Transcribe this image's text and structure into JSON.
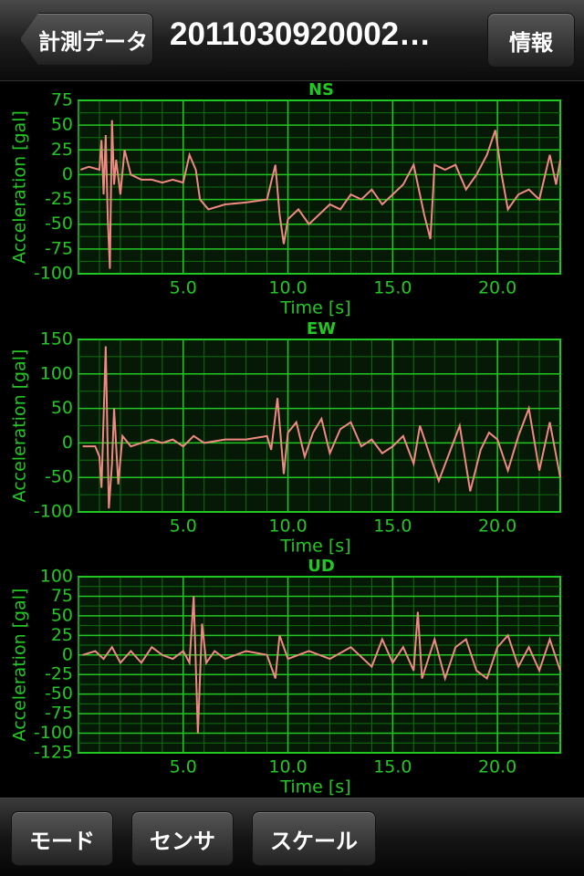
{
  "nav_bar": {
    "back": "計測データ",
    "title": "2011030920002…",
    "info": "情報"
  },
  "chart_data": [
    {
      "type": "line",
      "title": "NS",
      "x_label": "Time [s]",
      "y_label": "Acceleration [gal]",
      "color": "#f08a80",
      "grid": true,
      "x": [
        0.1,
        0.5,
        1.0,
        1.1,
        1.2,
        1.3,
        1.4,
        1.5,
        1.6,
        1.7,
        1.8,
        2.0,
        2.2,
        2.5,
        3.0,
        3.5,
        4.0,
        4.5,
        5.0,
        5.3,
        5.6,
        5.8,
        6.2,
        7.0,
        8.0,
        9.0,
        9.4,
        9.6,
        9.8,
        10.0,
        10.5,
        11.0,
        11.5,
        12.0,
        12.5,
        13.0,
        13.5,
        14.0,
        14.5,
        15.0,
        15.5,
        16.0,
        16.5,
        16.8,
        17.0,
        17.5,
        18.0,
        18.5,
        19.0,
        19.5,
        19.9,
        20.2,
        20.5,
        21.0,
        21.5,
        22.0,
        22.5,
        22.8,
        23.0
      ],
      "values": [
        5,
        8,
        5,
        35,
        -20,
        40,
        -45,
        -95,
        55,
        -10,
        15,
        -20,
        25,
        0,
        -5,
        -5,
        -8,
        -5,
        -8,
        20,
        5,
        -25,
        -35,
        -30,
        -28,
        -25,
        10,
        -40,
        -70,
        -45,
        -35,
        -50,
        -40,
        -30,
        -35,
        -20,
        -25,
        -15,
        -30,
        -20,
        -10,
        10,
        -40,
        -65,
        10,
        5,
        10,
        -15,
        0,
        20,
        45,
        0,
        -35,
        -20,
        -15,
        -25,
        20,
        -10,
        15
      ],
      "xlim": [
        0,
        23
      ],
      "xticks": [
        {
          "value": 5,
          "label": "5.0"
        },
        {
          "value": 10,
          "label": "10.0"
        },
        {
          "value": 15,
          "label": "15.0"
        },
        {
          "value": 20,
          "label": "20.0"
        }
      ],
      "ylim": [
        -100,
        75
      ],
      "yticks": [
        -100,
        -75,
        -50,
        -25,
        0,
        25,
        50,
        75
      ]
    },
    {
      "type": "line",
      "title": "EW",
      "x_label": "Time [s]",
      "y_label": "Acceleration [gal]",
      "color": "#f08a80",
      "grid": true,
      "x": [
        0.2,
        0.8,
        1.0,
        1.1,
        1.3,
        1.45,
        1.6,
        1.7,
        1.9,
        2.1,
        2.5,
        3.0,
        3.5,
        4.0,
        4.5,
        5.0,
        5.5,
        6.0,
        7.0,
        8.0,
        9.0,
        9.2,
        9.5,
        9.8,
        10.0,
        10.4,
        10.8,
        11.2,
        11.6,
        12.0,
        12.5,
        13.0,
        13.5,
        14.0,
        14.5,
        15.0,
        15.5,
        16.0,
        16.3,
        16.8,
        17.2,
        17.7,
        18.2,
        18.7,
        19.2,
        19.6,
        20.0,
        20.5,
        21.0,
        21.5,
        22.0,
        22.5,
        23.0
      ],
      "values": [
        -5,
        -5,
        -20,
        -65,
        140,
        -95,
        -30,
        50,
        -60,
        10,
        -5,
        0,
        5,
        0,
        5,
        -5,
        10,
        0,
        5,
        5,
        10,
        -10,
        65,
        -45,
        15,
        30,
        -20,
        15,
        35,
        -15,
        20,
        30,
        -5,
        5,
        -15,
        -5,
        10,
        -30,
        25,
        -20,
        -55,
        -15,
        25,
        -70,
        -10,
        15,
        5,
        -40,
        10,
        50,
        -40,
        30,
        -50
      ],
      "xlim": [
        0,
        23
      ],
      "xticks": [
        {
          "value": 5,
          "label": "5.0"
        },
        {
          "value": 10,
          "label": "10.0"
        },
        {
          "value": 15,
          "label": "15.0"
        },
        {
          "value": 20,
          "label": "20.0"
        }
      ],
      "ylim": [
        -100,
        150
      ],
      "yticks": [
        -100,
        -50,
        0,
        50,
        100,
        150
      ]
    },
    {
      "type": "line",
      "title": "UD",
      "x_label": "Time [s]",
      "y_label": "Acceleration [gal]",
      "color": "#f08a80",
      "grid": true,
      "x": [
        0.2,
        0.8,
        1.2,
        1.6,
        2.0,
        2.5,
        3.0,
        3.5,
        4.0,
        4.5,
        5.0,
        5.3,
        5.5,
        5.7,
        5.9,
        6.1,
        6.5,
        7.0,
        8.0,
        9.0,
        9.4,
        9.6,
        10.0,
        11.0,
        12.0,
        13.0,
        14.0,
        14.5,
        15.0,
        15.5,
        16.0,
        16.2,
        16.4,
        17.0,
        17.5,
        18.0,
        18.5,
        19.0,
        19.5,
        20.0,
        20.5,
        21.0,
        21.5,
        22.0,
        22.5,
        23.0
      ],
      "values": [
        0,
        5,
        -5,
        10,
        -10,
        5,
        -10,
        10,
        0,
        -5,
        5,
        -10,
        75,
        -100,
        40,
        -10,
        5,
        -5,
        5,
        0,
        -30,
        25,
        -5,
        5,
        -5,
        10,
        -15,
        20,
        -10,
        10,
        -20,
        55,
        -30,
        20,
        -30,
        10,
        20,
        -20,
        -30,
        10,
        25,
        -15,
        10,
        -20,
        20,
        -20
      ],
      "xlim": [
        0,
        23
      ],
      "xticks": [
        {
          "value": 5,
          "label": "5.0"
        },
        {
          "value": 10,
          "label": "10.0"
        },
        {
          "value": 15,
          "label": "15.0"
        },
        {
          "value": 20,
          "label": "20.0"
        }
      ],
      "ylim": [
        -125,
        100
      ],
      "yticks": [
        -125,
        -100,
        -75,
        -50,
        -25,
        0,
        25,
        50,
        75,
        100
      ]
    }
  ],
  "toolbar": {
    "buttons": [
      "モード",
      "センサ",
      "スケール"
    ]
  }
}
